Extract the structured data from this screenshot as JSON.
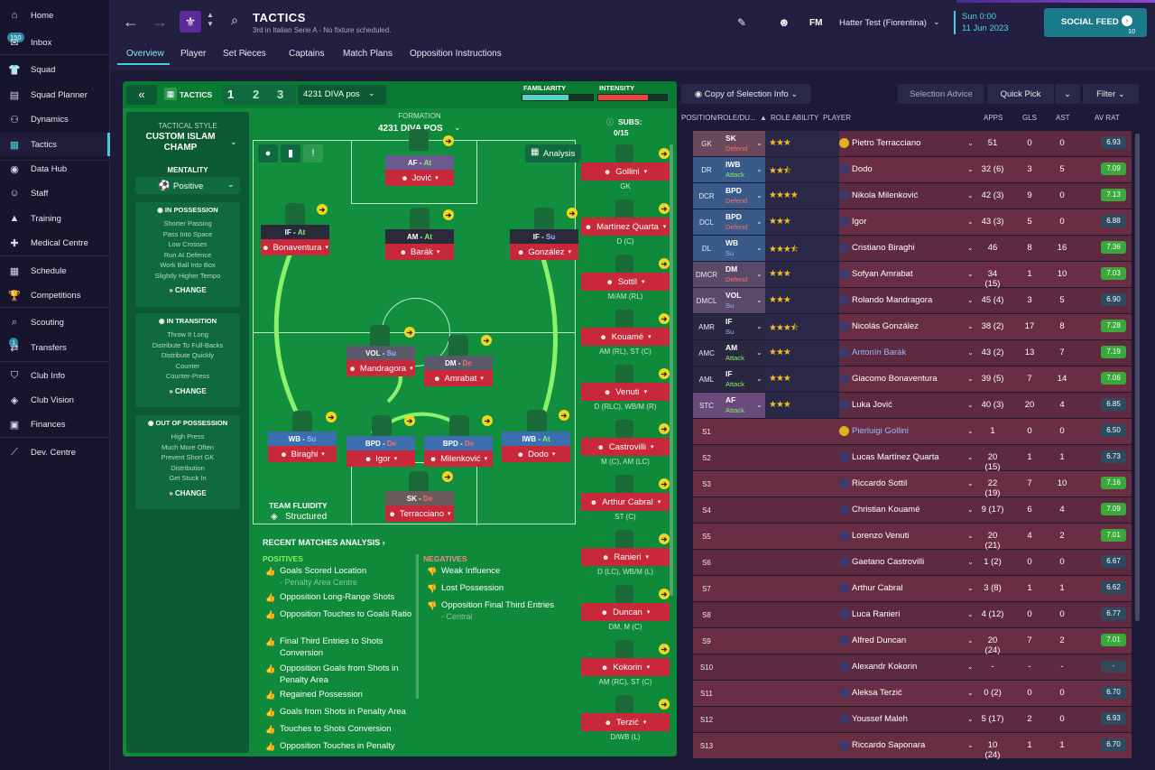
{
  "sidebar": {
    "inbox_count": "150",
    "transfers_count": "1",
    "items": [
      {
        "label": "Home",
        "icon": "home-icon",
        "glyph": "⌂"
      },
      {
        "label": "Inbox",
        "icon": "inbox-icon",
        "glyph": "✉"
      },
      {
        "label": "Squad",
        "icon": "squad-icon",
        "glyph": "👕"
      },
      {
        "label": "Squad Planner",
        "icon": "planner-icon",
        "glyph": "▤"
      },
      {
        "label": "Dynamics",
        "icon": "dynamics-icon",
        "glyph": "⚇"
      },
      {
        "label": "Tactics",
        "icon": "tactics-icon",
        "glyph": "▦"
      },
      {
        "label": "Data Hub",
        "icon": "data-hub-icon",
        "glyph": "◉"
      },
      {
        "label": "Staff",
        "icon": "staff-icon",
        "glyph": "☺"
      },
      {
        "label": "Training",
        "icon": "training-icon",
        "glyph": "▲"
      },
      {
        "label": "Medical Centre",
        "icon": "medical-icon",
        "glyph": "✚"
      },
      {
        "label": "Schedule",
        "icon": "schedule-icon",
        "glyph": "▦"
      },
      {
        "label": "Competitions",
        "icon": "trophy-icon",
        "glyph": "🏆"
      },
      {
        "label": "Scouting",
        "icon": "scouting-icon",
        "glyph": "⌕"
      },
      {
        "label": "Transfers",
        "icon": "transfers-icon",
        "glyph": "⇄"
      },
      {
        "label": "Club Info",
        "icon": "club-info-icon",
        "glyph": "⛉"
      },
      {
        "label": "Club Vision",
        "icon": "club-vision-icon",
        "glyph": "◈"
      },
      {
        "label": "Finances",
        "icon": "finances-icon",
        "glyph": "▣"
      },
      {
        "label": "Dev. Centre",
        "icon": "dev-centre-icon",
        "glyph": "⟋"
      }
    ]
  },
  "header": {
    "title": "TACTICS",
    "subtitle": "3rd in Italian Serie A - No fixture scheduled.",
    "fm_label": "FM",
    "profile": "Hatter Test (Fiorentina)",
    "time": "Sun 0:00",
    "date": "11 Jun 2023",
    "social_feed": "SOCIAL FEED",
    "social_count": "10",
    "tabs": [
      "Overview",
      "Player",
      "Set Pieces",
      "Captains",
      "Match Plans",
      "Opposition Instructions"
    ]
  },
  "tactic_bar": {
    "label": "TACTICS",
    "slots": [
      "1",
      "2",
      "3"
    ],
    "selected": "4231 DIVA pos",
    "familiarity": "FAMILIARITY",
    "intensity": "INTENSITY"
  },
  "left": {
    "style_label": "TACTICAL STYLE",
    "style": "CUSTOM ISLAM CHAMP",
    "mentality_label": "MENTALITY",
    "mentality": "Positive",
    "in_possession": {
      "title": "IN POSSESSION",
      "lines": [
        "Shorter Passing",
        "Pass Into Space",
        "Low Crosses",
        "Run At Defence",
        "Work Ball Into Box",
        "Slightly Higher Tempo"
      ]
    },
    "in_transition": {
      "title": "IN TRANSITION",
      "lines": [
        "Throw It Long",
        "Distribute To Full-Backs",
        "Distribute Quickly",
        "Counter",
        "Counter-Press"
      ]
    },
    "out_possession": {
      "title": "OUT OF POSSESSION",
      "lines": [
        "High Press",
        "Much More Often",
        "Prevent Short GK",
        "Distribution",
        "Get Stuck In"
      ]
    },
    "change": "CHANGE"
  },
  "formation": {
    "label": "FORMATION",
    "name": "4231 DIVA POS",
    "analysis": "Analysis",
    "fluidity_label": "TEAM FLUIDITY",
    "fluidity": "Structured",
    "subs_label": "SUBS:",
    "subs_count": "0/15"
  },
  "pitch_players": [
    {
      "role": "AF",
      "duty": "At",
      "name": "Jović",
      "color": "purple"
    },
    {
      "role": "IF",
      "duty": "At",
      "name": "Bonaventura",
      "color": "dark"
    },
    {
      "role": "AM",
      "duty": "At",
      "name": "Barák",
      "color": "dark"
    },
    {
      "role": "IF",
      "duty": "Su",
      "name": "González",
      "color": "dark"
    },
    {
      "role": "VOL",
      "duty": "Su",
      "name": "Mandragora",
      "color": "grey"
    },
    {
      "role": "DM",
      "duty": "De",
      "name": "Amrabat",
      "color": "grey"
    },
    {
      "role": "WB",
      "duty": "Su",
      "name": "Biraghi",
      "color": "blue"
    },
    {
      "role": "BPD",
      "duty": "De",
      "name": "Igor",
      "color": "blue"
    },
    {
      "role": "BPD",
      "duty": "De",
      "name": "Milenković",
      "color": "blue"
    },
    {
      "role": "IWB",
      "duty": "At",
      "name": "Dodo",
      "color": "blue"
    },
    {
      "role": "SK",
      "duty": "De",
      "name": "Terracciano",
      "color": "brown"
    }
  ],
  "subs": [
    {
      "name": "Gollini",
      "pos": "GK"
    },
    {
      "name": "Martínez Quarta",
      "pos": "D (C)"
    },
    {
      "name": "Sottil",
      "pos": "M/AM (RL)"
    },
    {
      "name": "Kouamé",
      "pos": "AM (RL), ST (C)"
    },
    {
      "name": "Venuti",
      "pos": "D (RLC), WB/M (R)"
    },
    {
      "name": "Castrovilli",
      "pos": "M (C), AM (LC)"
    },
    {
      "name": "Arthur Cabral",
      "pos": "ST (C)"
    },
    {
      "name": "Ranieri",
      "pos": "D (LC), WB/M (L)"
    },
    {
      "name": "Duncan",
      "pos": "DM, M (C)"
    },
    {
      "name": "Kokorin",
      "pos": "AM (RC), ST (C)"
    },
    {
      "name": "Terzić",
      "pos": "D/WB (L)"
    }
  ],
  "analysis": {
    "title": "RECENT MATCHES ANALYSIS",
    "positives_label": "POSITIVES",
    "negatives_label": "NEGATIVES",
    "positives": [
      {
        "text": "Goals Scored Location",
        "sub": "- Penalty Area Centre"
      },
      {
        "text": "Opposition Long-Range Shots",
        "sub": ""
      },
      {
        "text": "Opposition Touches to Goals Ratio",
        "sub": ""
      },
      {
        "text": "Final Third Entries to Shots Conversion",
        "sub": ""
      },
      {
        "text": "Opposition Goals from Shots in Penalty Area",
        "sub": ""
      },
      {
        "text": "Regained Possession",
        "sub": ""
      },
      {
        "text": "Goals from Shots in Penalty Area",
        "sub": ""
      },
      {
        "text": "Touches to Shots Conversion",
        "sub": ""
      },
      {
        "text": "Opposition Touches in Penalty",
        "sub": ""
      }
    ],
    "negatives": [
      {
        "text": "Weak Influence",
        "sub": ""
      },
      {
        "text": "Lost Possession",
        "sub": ""
      },
      {
        "text": "Opposition Final Third Entries",
        "sub": "- Central"
      }
    ]
  },
  "right": {
    "copy_btn": "Copy of Selection Info",
    "advice_btn": "Selection Advice",
    "quick_pick": "Quick Pick",
    "filter": "Filter",
    "columns": [
      "POSITION/ROLE/DU...",
      "ROLE ABILITY",
      "PLAYER",
      "APPS",
      "GLS",
      "AST",
      "AV RAT"
    ],
    "rows": [
      {
        "pos": "GK",
        "role": "SK",
        "duty": "Defend",
        "stars": "★★★",
        "name": "Pietro Terracciano",
        "apps": "51",
        "gls": "0",
        "ast": "0",
        "rat": "6.93",
        "rc": "dark"
      },
      {
        "pos": "DR",
        "role": "IWB",
        "duty": "Attack",
        "stars": "★★⯪",
        "name": "Dodo",
        "apps": "32 (6)",
        "gls": "3",
        "ast": "5",
        "rat": "7.09",
        "rc": "green"
      },
      {
        "pos": "DCR",
        "role": "BPD",
        "duty": "Defend",
        "stars": "★★★★",
        "name": "Nikola Milenković",
        "apps": "42 (3)",
        "gls": "9",
        "ast": "0",
        "rat": "7.13",
        "rc": "green"
      },
      {
        "pos": "DCL",
        "role": "BPD",
        "duty": "Defend",
        "stars": "★★★",
        "name": "Igor",
        "apps": "43 (3)",
        "gls": "5",
        "ast": "0",
        "rat": "6.88",
        "rc": "dark"
      },
      {
        "pos": "DL",
        "role": "WB",
        "duty": "Su",
        "stars": "★★★⯪",
        "name": "Cristiano Biraghi",
        "apps": "46",
        "gls": "8",
        "ast": "16",
        "rat": "7.36",
        "rc": "green"
      },
      {
        "pos": "DMCR",
        "role": "DM",
        "duty": "Defend",
        "stars": "★★★",
        "name": "Sofyan Amrabat",
        "apps": "34 (15)",
        "gls": "1",
        "ast": "10",
        "rat": "7.03",
        "rc": "green"
      },
      {
        "pos": "DMCL",
        "role": "VOL",
        "duty": "Su",
        "stars": "★★★",
        "name": "Rolando Mandragora",
        "apps": "45 (4)",
        "gls": "3",
        "ast": "5",
        "rat": "6.90",
        "rc": "dark"
      },
      {
        "pos": "AMR",
        "role": "IF",
        "duty": "Su",
        "stars": "★★★⯪",
        "name": "Nicolás González",
        "apps": "38 (2)",
        "gls": "17",
        "ast": "8",
        "rat": "7.28",
        "rc": "green"
      },
      {
        "pos": "AMC",
        "role": "AM",
        "duty": "Attack",
        "stars": "★★★",
        "name": "Antonín Barák",
        "apps": "43 (2)",
        "gls": "13",
        "ast": "7",
        "rat": "7.19",
        "rc": "green",
        "link": true
      },
      {
        "pos": "AML",
        "role": "IF",
        "duty": "Attack",
        "stars": "★★★",
        "name": "Giacomo Bonaventura",
        "apps": "39 (5)",
        "gls": "7",
        "ast": "14",
        "rat": "7.06",
        "rc": "green"
      },
      {
        "pos": "STC",
        "role": "AF",
        "duty": "Attack",
        "stars": "★★★",
        "name": "Luka Jović",
        "apps": "40 (3)",
        "gls": "20",
        "ast": "4",
        "rat": "6.85",
        "rc": "dark"
      },
      {
        "pos": "S1",
        "role": "",
        "duty": "",
        "stars": "",
        "name": "Pierluigi Gollini",
        "apps": "1",
        "gls": "0",
        "ast": "0",
        "rat": "6.50",
        "rc": "dark",
        "link": true
      },
      {
        "pos": "S2",
        "role": "",
        "duty": "",
        "stars": "",
        "name": "Lucas Martínez Quarta",
        "apps": "20 (15)",
        "gls": "1",
        "ast": "1",
        "rat": "6.73",
        "rc": "dark"
      },
      {
        "pos": "S3",
        "role": "",
        "duty": "",
        "stars": "",
        "name": "Riccardo Sottil",
        "apps": "22 (19)",
        "gls": "7",
        "ast": "10",
        "rat": "7.16",
        "rc": "green"
      },
      {
        "pos": "S4",
        "role": "",
        "duty": "",
        "stars": "",
        "name": "Christian Kouamé",
        "apps": "9 (17)",
        "gls": "6",
        "ast": "4",
        "rat": "7.09",
        "rc": "green"
      },
      {
        "pos": "S5",
        "role": "",
        "duty": "",
        "stars": "",
        "name": "Lorenzo Venuti",
        "apps": "20 (21)",
        "gls": "4",
        "ast": "2",
        "rat": "7.01",
        "rc": "green"
      },
      {
        "pos": "S6",
        "role": "",
        "duty": "",
        "stars": "",
        "name": "Gaetano Castrovilli",
        "apps": "1 (2)",
        "gls": "0",
        "ast": "0",
        "rat": "6.67",
        "rc": "dark"
      },
      {
        "pos": "S7",
        "role": "",
        "duty": "",
        "stars": "",
        "name": "Arthur Cabral",
        "apps": "3 (8)",
        "gls": "1",
        "ast": "1",
        "rat": "6.62",
        "rc": "dark"
      },
      {
        "pos": "S8",
        "role": "",
        "duty": "",
        "stars": "",
        "name": "Luca Ranieri",
        "apps": "4 (12)",
        "gls": "0",
        "ast": "0",
        "rat": "6.77",
        "rc": "dark"
      },
      {
        "pos": "S9",
        "role": "",
        "duty": "",
        "stars": "",
        "name": "Alfred Duncan",
        "apps": "20 (24)",
        "gls": "7",
        "ast": "2",
        "rat": "7.01",
        "rc": "green"
      },
      {
        "pos": "S10",
        "role": "",
        "duty": "",
        "stars": "",
        "name": "Alexandr Kokorin",
        "apps": "-",
        "gls": "-",
        "ast": "-",
        "rat": "-",
        "rc": "grey"
      },
      {
        "pos": "S11",
        "role": "",
        "duty": "",
        "stars": "",
        "name": "Aleksa Terzić",
        "apps": "0 (2)",
        "gls": "0",
        "ast": "0",
        "rat": "6.70",
        "rc": "dark"
      },
      {
        "pos": "S12",
        "role": "",
        "duty": "",
        "stars": "",
        "name": "Youssef Maleh",
        "apps": "5 (17)",
        "gls": "2",
        "ast": "0",
        "rat": "6.93",
        "rc": "dark"
      },
      {
        "pos": "S13",
        "role": "",
        "duty": "",
        "stars": "",
        "name": "Riccardo Saponara",
        "apps": "10 (24)",
        "gls": "1",
        "ast": "1",
        "rat": "6.70",
        "rc": "dark"
      }
    ]
  },
  "colors": {
    "accent": "#3fd0e0",
    "pitch": "#0e8a3a",
    "row": "#5e2a40",
    "rating_green": "#3aa83a"
  }
}
